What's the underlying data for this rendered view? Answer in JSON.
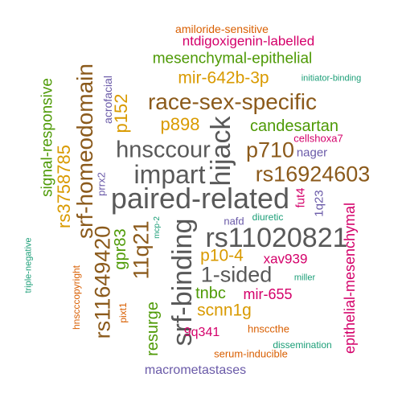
{
  "colors": {
    "gray": "#595959",
    "brown": "#8B5A1B",
    "green": "#4E9A06",
    "gold": "#D99A00",
    "magenta": "#D4006A",
    "orange": "#D95F02",
    "purple": "#6A5AA8",
    "teal": "#1B9E77"
  },
  "words": [
    {
      "text": "paired-related",
      "color": "gray"
    },
    {
      "text": "rs11020821",
      "color": "gray"
    },
    {
      "text": "srf-binding",
      "color": "gray"
    },
    {
      "text": "hnsccour",
      "color": "gray"
    },
    {
      "text": "impart",
      "color": "gray"
    },
    {
      "text": "hijack",
      "color": "gray"
    },
    {
      "text": "1-sided",
      "color": "gray"
    },
    {
      "text": "race-sex-specific",
      "color": "brown"
    },
    {
      "text": "rs16924603",
      "color": "brown"
    },
    {
      "text": "p710",
      "color": "brown"
    },
    {
      "text": "srf-homeodomain",
      "color": "brown"
    },
    {
      "text": "rs11649420",
      "color": "brown"
    },
    {
      "text": "11q21",
      "color": "brown"
    },
    {
      "text": "rs3758785",
      "color": "gold"
    },
    {
      "text": "mir-642b-3p",
      "color": "gold"
    },
    {
      "text": "p898",
      "color": "gold"
    },
    {
      "text": "p152",
      "color": "gold"
    },
    {
      "text": "p10-4",
      "color": "gold"
    },
    {
      "text": "scnn1g",
      "color": "gold"
    },
    {
      "text": "mesenchymal-epithelial",
      "color": "green"
    },
    {
      "text": "candesartan",
      "color": "green"
    },
    {
      "text": "signal-responsive",
      "color": "green"
    },
    {
      "text": "gpr83",
      "color": "green"
    },
    {
      "text": "resurge",
      "color": "green"
    },
    {
      "text": "tnbc",
      "color": "green"
    },
    {
      "text": "diuretic",
      "color": "teal"
    },
    {
      "text": "ntdigoxigenin-labelled",
      "color": "magenta"
    },
    {
      "text": "epithelial-mesenchymal",
      "color": "magenta"
    },
    {
      "text": "mir-655",
      "color": "magenta"
    },
    {
      "text": "xav939",
      "color": "magenta"
    },
    {
      "text": "9q341",
      "color": "magenta"
    },
    {
      "text": "fut4",
      "color": "magenta"
    },
    {
      "text": "cellshoxa7",
      "color": "magenta"
    },
    {
      "text": "amiloride-sensitive",
      "color": "orange"
    },
    {
      "text": "hnscccopyright",
      "color": "orange"
    },
    {
      "text": "pixt1",
      "color": "orange"
    },
    {
      "text": "hnsccthe",
      "color": "orange"
    },
    {
      "text": "serum-inducible",
      "color": "orange"
    },
    {
      "text": "macrometastases",
      "color": "purple"
    },
    {
      "text": "acrofacial",
      "color": "purple"
    },
    {
      "text": "nager",
      "color": "purple"
    },
    {
      "text": "prrx2",
      "color": "purple"
    },
    {
      "text": "nafd",
      "color": "purple"
    },
    {
      "text": "1q23",
      "color": "purple"
    },
    {
      "text": "initiator-binding",
      "color": "teal"
    },
    {
      "text": "mcp-2",
      "color": "teal"
    },
    {
      "text": "triple-negative",
      "color": "teal"
    },
    {
      "text": "miller",
      "color": "teal"
    },
    {
      "text": "dissemination",
      "color": "teal"
    }
  ]
}
